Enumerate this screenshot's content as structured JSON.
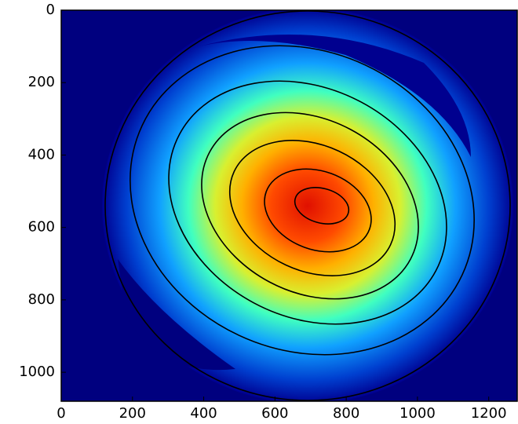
{
  "chart_data": {
    "type": "image",
    "colormap": "jet",
    "xlim": [
      0,
      1280
    ],
    "xticks": [
      0,
      200,
      400,
      600,
      800,
      1000,
      1200
    ],
    "ylim": [
      0,
      1080
    ],
    "yticks": [
      0,
      200,
      400,
      600,
      800,
      1000
    ],
    "y_inverted": true
  }
}
